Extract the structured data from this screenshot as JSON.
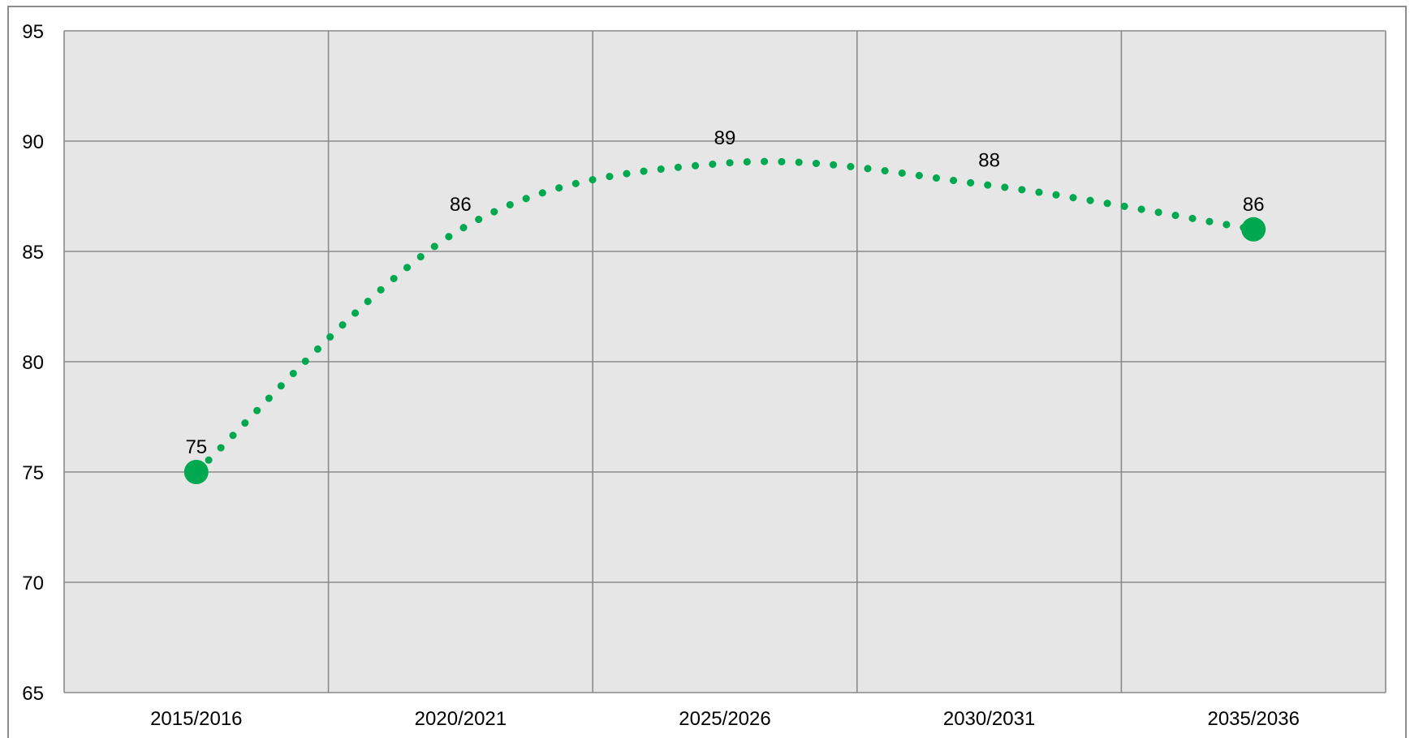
{
  "chart_data": {
    "type": "line",
    "categories": [
      "2015/2016",
      "2020/2021",
      "2025/2026",
      "2030/2031",
      "2035/2036"
    ],
    "values": [
      75,
      86,
      89,
      88,
      86
    ],
    "data_labels": [
      "75",
      "86",
      "89",
      "88",
      "86"
    ],
    "y_ticks": [
      "65",
      "70",
      "75",
      "80",
      "85",
      "90",
      "95"
    ],
    "ylim": [
      65,
      95
    ],
    "title": "",
    "xlabel": "",
    "ylabel": "",
    "grid": true,
    "line_style": "dotted-smooth",
    "colors": {
      "series": "#00a94f",
      "plot_background": "#e6e6e6",
      "gridline": "#8a8a8a",
      "frame": "#8c8c8c"
    }
  }
}
